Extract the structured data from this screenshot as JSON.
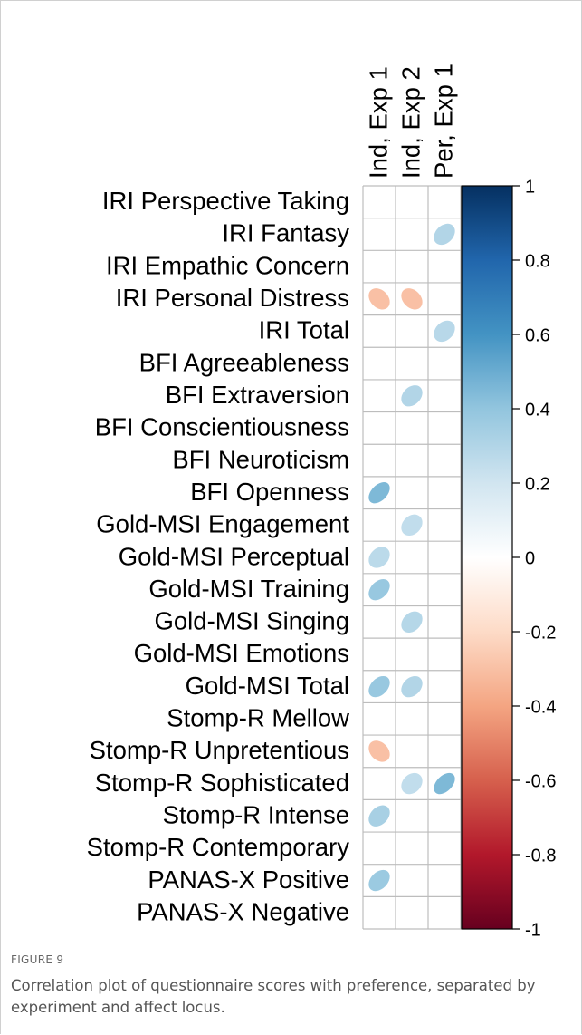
{
  "chart_data": {
    "type": "corrplot",
    "columns": [
      "Ind, Exp 1",
      "Ind, Exp 2",
      "Per, Exp 1"
    ],
    "rows": [
      "IRI Perspective Taking",
      "IRI Fantasy",
      "IRI Empathic Concern",
      "IRI Personal Distress",
      "IRI Total",
      "BFI Agreeableness",
      "BFI Extraversion",
      "BFI Conscientiousness",
      "BFI Neuroticism",
      "BFI Openness",
      "Gold-MSI Engagement",
      "Gold-MSI Perceptual",
      "Gold-MSI Training",
      "Gold-MSI Singing",
      "Gold-MSI Emotions",
      "Gold-MSI Total",
      "Stomp-R Mellow",
      "Stomp-R Unpretentious",
      "Stomp-R Sophisticated",
      "Stomp-R Intense",
      "Stomp-R Contemporary",
      "PANAS-X Positive",
      "PANAS-X Negative"
    ],
    "values": [
      [
        null,
        null,
        null
      ],
      [
        null,
        null,
        0.3
      ],
      [
        null,
        null,
        null
      ],
      [
        -0.3,
        -0.3,
        null
      ],
      [
        null,
        null,
        0.28
      ],
      [
        null,
        null,
        null
      ],
      [
        null,
        0.3,
        null
      ],
      [
        null,
        null,
        null
      ],
      [
        null,
        null,
        null
      ],
      [
        0.45,
        null,
        null
      ],
      [
        null,
        0.25,
        null
      ],
      [
        0.27,
        null,
        null
      ],
      [
        0.38,
        null,
        null
      ],
      [
        null,
        0.29,
        null
      ],
      [
        null,
        null,
        null
      ],
      [
        0.38,
        0.3,
        null
      ],
      [
        null,
        null,
        null
      ],
      [
        -0.3,
        null,
        null
      ],
      [
        null,
        0.25,
        0.45
      ],
      [
        0.33,
        null,
        null
      ],
      [
        null,
        null,
        null
      ],
      [
        0.37,
        null,
        null
      ],
      [
        null,
        null,
        null
      ]
    ],
    "colorscale": [
      "#67001F",
      "#B2182B",
      "#D6604D",
      "#F4A582",
      "#FDDBC7",
      "#FFFFFF",
      "#D1E5F0",
      "#92C5DE",
      "#4393C3",
      "#2166AC",
      "#053061"
    ],
    "clim": [
      -1,
      1
    ],
    "cticks": [
      1,
      0.8,
      0.6,
      0.4,
      0.2,
      0,
      -0.2,
      -0.4,
      -0.6,
      -0.8,
      -1
    ],
    "figure_label": "FIGURE 9",
    "caption": "Correlation plot of questionnaire scores with preference, separated by experiment and affect locus."
  }
}
